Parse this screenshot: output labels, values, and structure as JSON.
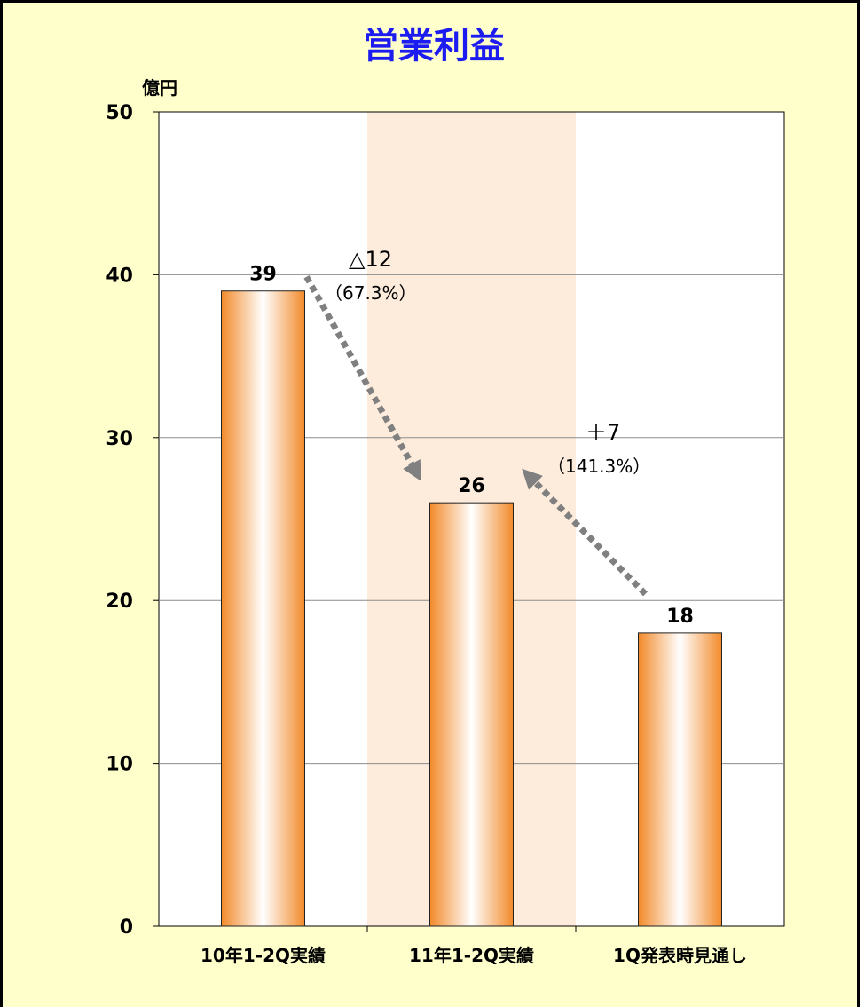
{
  "chart_data": {
    "type": "bar",
    "title": "営業利益",
    "unit_label": "億円",
    "categories": [
      "10年1-2Q実績",
      "11年1-2Q実績",
      "1Q発表時見通し"
    ],
    "values": [
      39,
      26,
      18
    ],
    "data_labels": [
      "39",
      "26",
      "18"
    ],
    "ylim": [
      0,
      50
    ],
    "yticks": [
      0,
      10,
      20,
      30,
      40,
      50
    ],
    "ytick_labels": [
      "0",
      "10",
      "20",
      "30",
      "40",
      "50"
    ],
    "grid": true,
    "highlight_category_index": 1,
    "annotations": [
      {
        "from": 0,
        "to": 1,
        "line1": "△12",
        "line2": "（67.3%）"
      },
      {
        "from": 2,
        "to": 1,
        "line1": "＋7",
        "line2": "（141.3%）"
      }
    ]
  },
  "colors": {
    "background": "#ffffcc",
    "plot_background": "#ffffff",
    "highlight_band": "#fdebdc",
    "bar_edge": "#f28a2a",
    "bar_center": "#ffffff",
    "arrow": "#808080",
    "title": "#1c1cf0",
    "gridline": "#8c8c8c"
  }
}
